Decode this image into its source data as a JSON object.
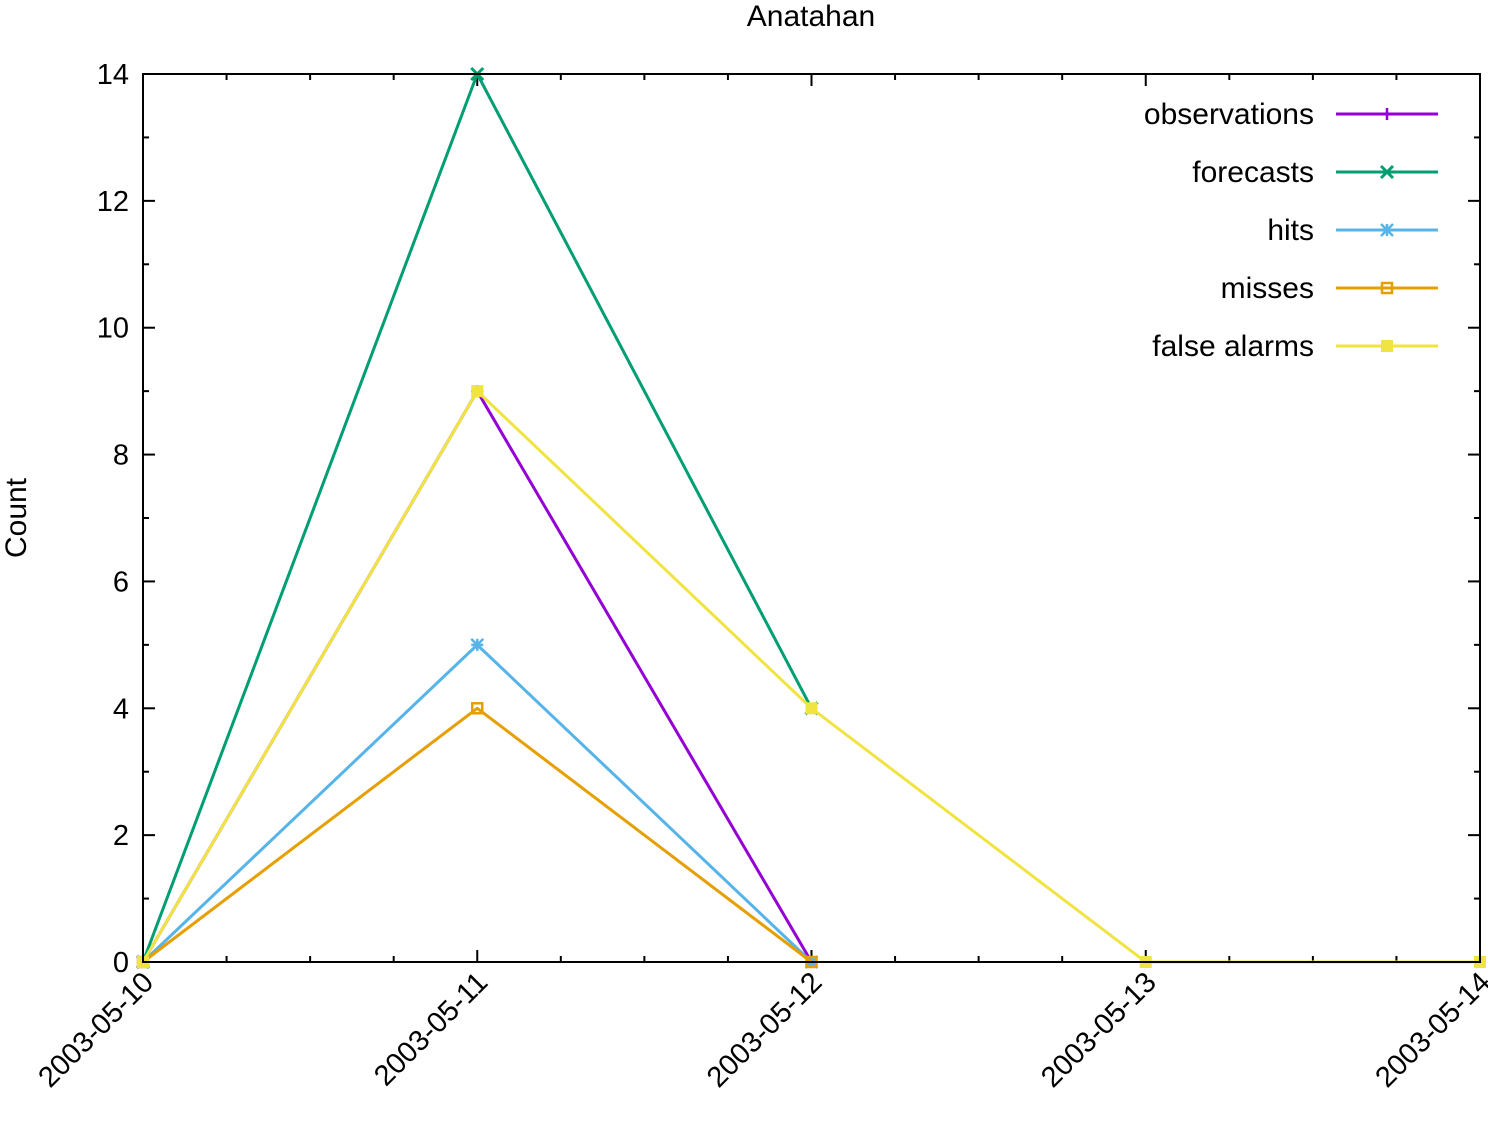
{
  "chart_data": {
    "type": "line",
    "title": "Anatahan",
    "xlabel": "",
    "ylabel": "Count",
    "x": [
      "2003-05-10",
      "2003-05-11",
      "2003-05-12",
      "2003-05-13",
      "2003-05-14"
    ],
    "xlim": [
      "2003-05-10",
      "2003-05-14"
    ],
    "ylim": [
      0,
      14
    ],
    "yticks": [
      "0",
      "2",
      "4",
      "6",
      "8",
      "10",
      "12",
      "14"
    ],
    "grid": false,
    "legend_position": "top-right",
    "series": [
      {
        "name": "observations",
        "color": "#9400d3",
        "marker": "plus",
        "values": [
          0,
          9,
          0,
          null,
          null
        ]
      },
      {
        "name": "forecasts",
        "color": "#009e73",
        "marker": "cross",
        "values": [
          0,
          14,
          4,
          null,
          null
        ]
      },
      {
        "name": "hits",
        "color": "#56b4e9",
        "marker": "star",
        "values": [
          0,
          5,
          0,
          null,
          null
        ]
      },
      {
        "name": "misses",
        "color": "#e69f00",
        "marker": "open-square",
        "values": [
          0,
          4,
          0,
          null,
          null
        ]
      },
      {
        "name": "false alarms",
        "color": "#f0e442",
        "marker": "filled-square",
        "values": [
          0,
          9,
          4,
          0,
          0
        ]
      }
    ]
  }
}
